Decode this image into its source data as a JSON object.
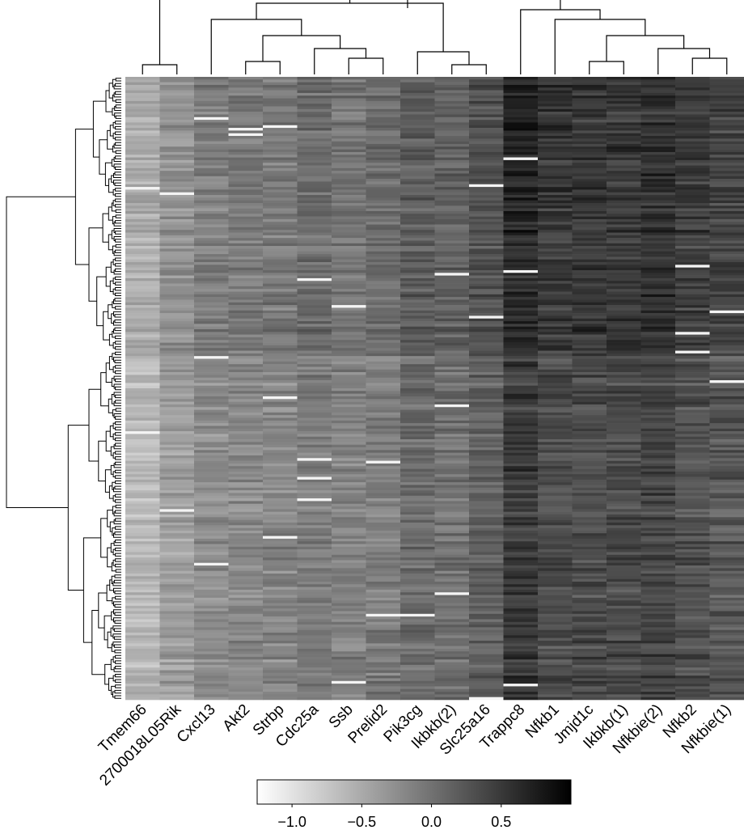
{
  "chart_data": {
    "type": "heatmap",
    "title": "",
    "columns": [
      "Tmem66",
      "2700018L05Rik",
      "Cxcl13",
      "Akt2",
      "Strbp",
      "Cdc25a",
      "Ssb",
      "Prelid2",
      "Pik3cg",
      "Ikbkb(2)",
      "Slc25a16",
      "Trappc8",
      "Nfkb1",
      "Jmjd1c",
      "Ikbkb(1)",
      "Nfkbie(2)",
      "Nfkb2",
      "Nfkbie(1)"
    ],
    "column_base_values": [
      -0.6,
      -0.35,
      -0.2,
      -0.15,
      -0.15,
      -0.05,
      -0.1,
      -0.05,
      0.1,
      0.05,
      0.2,
      0.55,
      0.4,
      0.4,
      0.4,
      0.45,
      0.35,
      0.3
    ],
    "row_count": 232,
    "row_dendrogram": true,
    "column_dendrogram": true,
    "colorbar": {
      "range": [
        -1.25,
        1.0
      ],
      "ticks": [
        -1.0,
        -0.5,
        0.0,
        0.5
      ],
      "tick_labels": [
        "−1.0",
        "−0.5",
        "0.0",
        "0.5"
      ],
      "low_color": "#ffffff",
      "high_color": "#000000"
    }
  }
}
